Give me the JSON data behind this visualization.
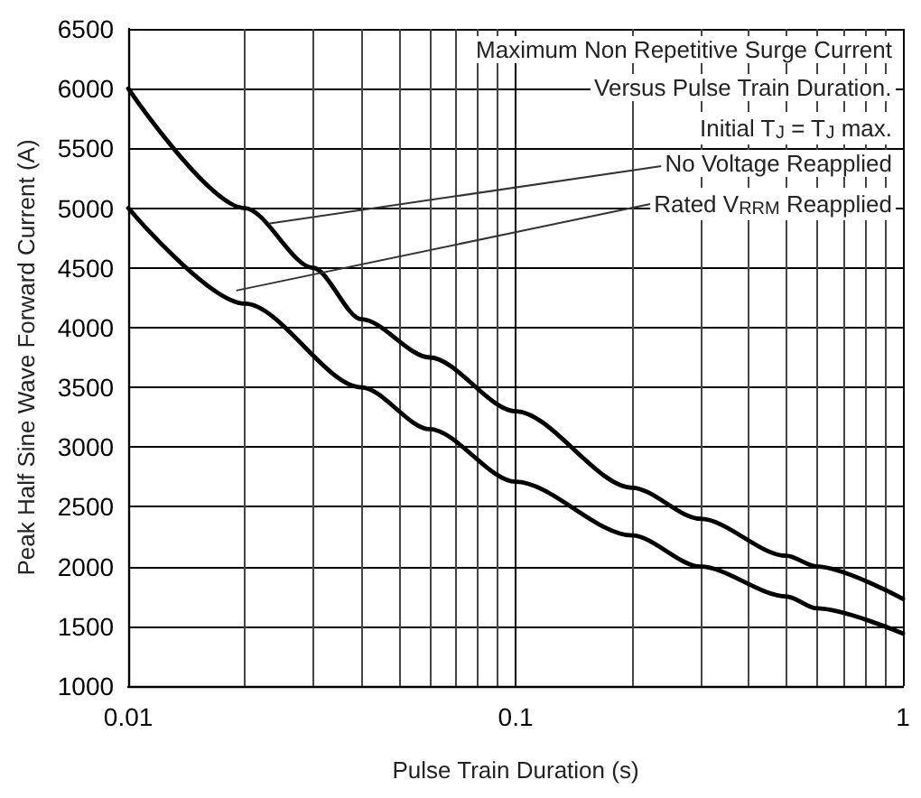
{
  "chart_data": {
    "type": "line",
    "xlabel": "Pulse Train Duration (s)",
    "ylabel": "Peak Half Sine Wave Forward Current (A)",
    "log": "x",
    "grid": true,
    "marker": "none",
    "line_style": "solid",
    "xlim": [
      0.01,
      1
    ],
    "xticks": [
      0.01,
      0.1,
      1
    ],
    "ylim": [
      1000,
      6500
    ],
    "yticks": [
      1000,
      1500,
      2000,
      2500,
      3000,
      3500,
      4000,
      4500,
      5000,
      5500,
      6000,
      6500
    ],
    "series": [
      {
        "color": "#000000",
        "x": [
          0.01,
          0.02,
          0.03,
          0.04,
          0.06,
          0.1,
          0.2,
          0.3,
          0.5,
          0.6,
          1
        ],
        "values": [
          6000,
          5000,
          4500,
          4070,
          3750,
          3300,
          2660,
          2400,
          2090,
          2000,
          1730
        ]
      },
      {
        "color": "#000000",
        "x": [
          0.01,
          0.02,
          0.04,
          0.06,
          0.1,
          0.2,
          0.3,
          0.5,
          0.6,
          1
        ],
        "values": [
          5000,
          4200,
          3500,
          3150,
          2710,
          2260,
          2000,
          1750,
          1650,
          1440
        ]
      }
    ],
    "annotations": [
      "Maximum Non Repetitive Surge Current",
      "Versus Pulse Train Duration.",
      "Initial T$_{J}$ = T$_{J}$ max.",
      {
        "text": "No Voltage Reapplied",
        "x": 0.023,
        "y": 4870
      },
      {
        "text": "Rated V$_{RRM}$ Reapplied",
        "x": 0.019,
        "y": 4310
      }
    ]
  }
}
